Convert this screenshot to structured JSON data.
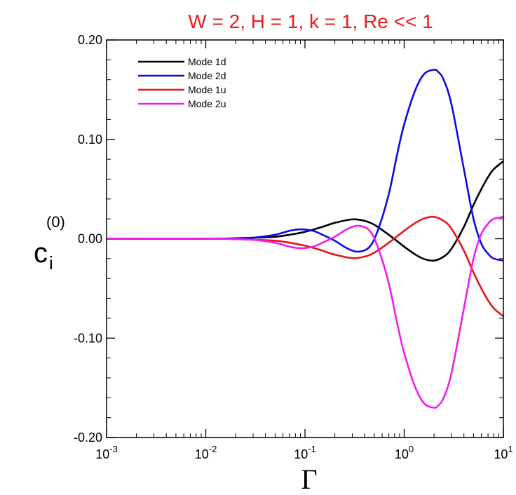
{
  "chart_data": {
    "type": "line",
    "title": "W = 2, H = 1, k = 1, Re << 1",
    "title_color": "#ee1c1c",
    "xlabel": "Γ",
    "ylabel": {
      "main": "c",
      "subscript": "i",
      "superscript": "(0)"
    },
    "xscale": "log",
    "xlim": [
      0.001,
      10
    ],
    "ylim": [
      -0.2,
      0.2
    ],
    "xticks": [
      {
        "value": 0.001,
        "base": "10",
        "exp": "-3"
      },
      {
        "value": 0.01,
        "base": "10",
        "exp": "-2"
      },
      {
        "value": 0.1,
        "base": "10",
        "exp": "-1"
      },
      {
        "value": 1,
        "base": "10",
        "exp": "0"
      },
      {
        "value": 10,
        "base": "10",
        "exp": "1"
      }
    ],
    "yticks": [
      {
        "value": -0.2,
        "label": "-0.20"
      },
      {
        "value": -0.1,
        "label": "-0.10"
      },
      {
        "value": 0.0,
        "label": "0.00"
      },
      {
        "value": 0.1,
        "label": "0.10"
      },
      {
        "value": 0.2,
        "label": "0.20"
      }
    ],
    "grid": false,
    "legend_position": "top-left",
    "series": [
      {
        "name": "Mode 1d",
        "color": "#000000",
        "x": [
          0.001,
          0.01,
          0.02,
          0.03,
          0.05,
          0.07,
          0.1,
          0.15,
          0.2,
          0.3,
          0.4,
          0.5,
          0.7,
          1.0,
          1.3,
          1.6,
          2.0,
          2.5,
          3.0,
          4.0,
          5.0,
          6.0,
          7.0,
          8.0,
          10.0
        ],
        "y": [
          0.0,
          0.0,
          0.0005,
          0.001,
          0.002,
          0.004,
          0.007,
          0.012,
          0.016,
          0.0195,
          0.018,
          0.014,
          0.004,
          -0.008,
          -0.016,
          -0.0205,
          -0.022,
          -0.018,
          -0.01,
          0.012,
          0.034,
          0.05,
          0.062,
          0.07,
          0.078
        ]
      },
      {
        "name": "Mode 2d",
        "color": "#0a0ae6",
        "x": [
          0.001,
          0.01,
          0.02,
          0.03,
          0.05,
          0.07,
          0.09,
          0.12,
          0.15,
          0.2,
          0.27,
          0.35,
          0.45,
          0.55,
          0.7,
          0.85,
          1.0,
          1.3,
          1.6,
          2.0,
          2.2,
          2.5,
          3.0,
          4.0,
          5.0,
          6.0,
          7.0,
          8.0,
          10.0
        ],
        "y": [
          0.0,
          0.0,
          0.0003,
          0.001,
          0.004,
          0.008,
          0.0095,
          0.008,
          0.004,
          -0.002,
          -0.01,
          -0.013,
          -0.008,
          0.01,
          0.045,
          0.085,
          0.115,
          0.15,
          0.166,
          0.17,
          0.168,
          0.16,
          0.135,
          0.07,
          0.02,
          -0.005,
          -0.015,
          -0.02,
          -0.022
        ]
      },
      {
        "name": "Mode 1u",
        "color": "#e61414",
        "x": [
          0.001,
          0.01,
          0.02,
          0.03,
          0.05,
          0.07,
          0.1,
          0.15,
          0.2,
          0.3,
          0.4,
          0.5,
          0.7,
          1.0,
          1.3,
          1.6,
          2.0,
          2.5,
          3.0,
          4.0,
          5.0,
          6.0,
          7.0,
          8.0,
          10.0
        ],
        "y": [
          0.0,
          0.0,
          -0.0005,
          -0.001,
          -0.002,
          -0.004,
          -0.007,
          -0.012,
          -0.016,
          -0.0195,
          -0.018,
          -0.014,
          -0.004,
          0.008,
          0.016,
          0.0205,
          0.022,
          0.018,
          0.01,
          -0.012,
          -0.034,
          -0.05,
          -0.062,
          -0.07,
          -0.078
        ]
      },
      {
        "name": "Mode 2u",
        "color": "#f01cf0",
        "x": [
          0.001,
          0.01,
          0.02,
          0.03,
          0.05,
          0.07,
          0.09,
          0.12,
          0.15,
          0.2,
          0.27,
          0.35,
          0.45,
          0.55,
          0.7,
          0.85,
          1.0,
          1.3,
          1.6,
          2.0,
          2.2,
          2.5,
          3.0,
          4.0,
          5.0,
          6.0,
          7.0,
          8.0,
          10.0
        ],
        "y": [
          0.0,
          0.0,
          -0.0003,
          -0.001,
          -0.004,
          -0.008,
          -0.0095,
          -0.008,
          -0.004,
          0.002,
          0.01,
          0.013,
          0.008,
          -0.01,
          -0.045,
          -0.085,
          -0.115,
          -0.15,
          -0.166,
          -0.17,
          -0.168,
          -0.16,
          -0.135,
          -0.07,
          -0.02,
          0.005,
          0.015,
          0.02,
          0.022
        ]
      }
    ]
  }
}
